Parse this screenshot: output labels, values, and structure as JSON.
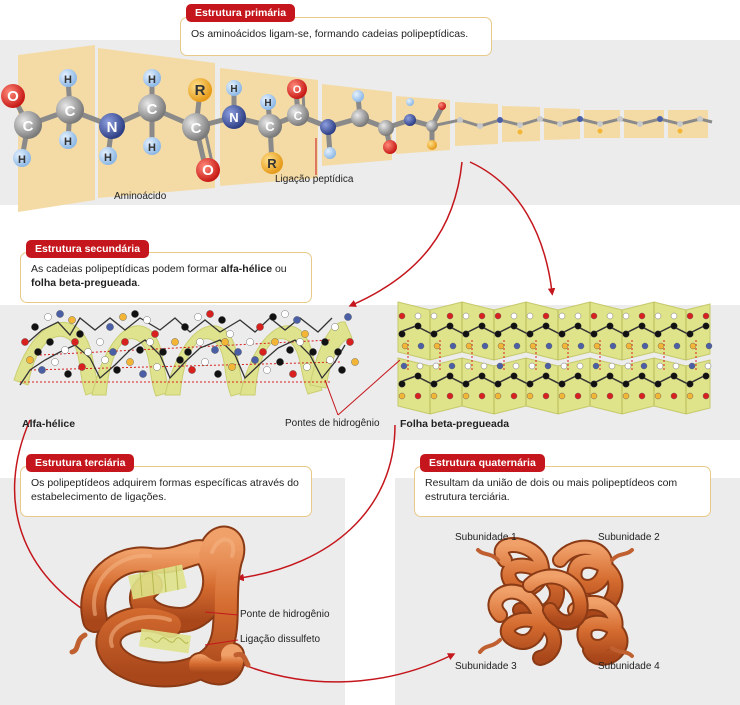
{
  "primary": {
    "title": "Estrutura primária",
    "description": "Os aminoácidos ligam-se, formando cadeias polipeptídicas.",
    "label_aminoacid": "Aminoácido",
    "label_peptide_bond": "Ligação peptídica",
    "atoms": {
      "O": "O",
      "C": "C",
      "H": "H",
      "N": "N",
      "R": "R"
    }
  },
  "secondary": {
    "title": "Estrutura secundária",
    "description_before": "As cadeias polipeptídicas podem formar ",
    "description_bold1": "alfa-hélice",
    "description_mid": " ou ",
    "description_bold2": "folha beta-pregueada",
    "description_after": ".",
    "label_alpha": "Alfa-hélice",
    "label_beta": "Folha beta-pregueada",
    "label_hbonds": "Pontes de hidrogênio"
  },
  "tertiary": {
    "title": "Estrutura terciária",
    "description": "Os polipeptídeos adquirem formas específicas através do estabelecimento de ligações.",
    "label_hbond": "Ponte de hidrogênio",
    "label_disulfide": "Ligação dissulfeto"
  },
  "quaternary": {
    "title": "Estrutura quaternária",
    "description": "Resultam da união de dois ou mais polipeptídeos com estrutura terciária.",
    "subunits": [
      "Subunidade 1",
      "Subunidade 2",
      "Subunidade 3",
      "Subunidade 4"
    ]
  },
  "colors": {
    "accent_red": "#c4161c",
    "band_gray": "#ececec",
    "tan": "#f4dba6",
    "yellow_green": "#dfe38a",
    "protein_orange": "#d9773a",
    "atom_oxygen": "#d8201f",
    "atom_carbon": "#9c9c9c",
    "atom_hydrogen": "#a9cdf0",
    "atom_nitrogen": "#4a5fa6",
    "atom_r": "#f3b536"
  }
}
